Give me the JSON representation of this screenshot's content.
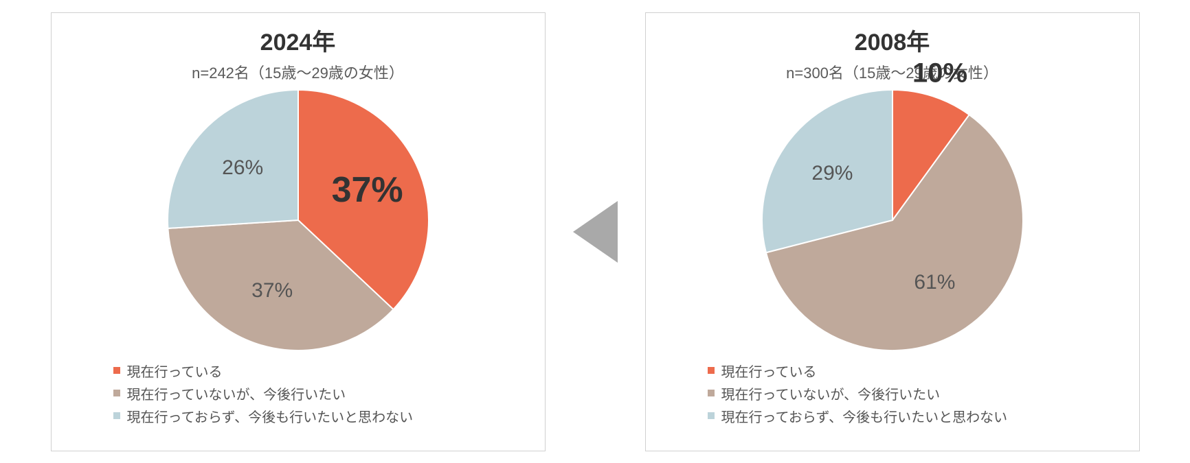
{
  "left": {
    "title": "2024年",
    "subtitle": "n=242名（15歳～29歳の女性）",
    "subtitle_color": "#5a5a5a",
    "slices": [
      {
        "value": 37,
        "label": "37%",
        "color": "#ed6b4c",
        "font_size": 52,
        "font_weight": "700",
        "label_color": "#333333"
      },
      {
        "value": 37,
        "label": "37%",
        "color": "#bfa99b",
        "font_size": 30,
        "font_weight": "400",
        "label_color": "#555555"
      },
      {
        "value": 26,
        "label": "26%",
        "color": "#bcd3da",
        "font_size": 30,
        "font_weight": "400",
        "label_color": "#555555"
      }
    ],
    "legend": [
      {
        "swatch": "#ed6b4c",
        "text": "現在行っている"
      },
      {
        "swatch": "#bfa99b",
        "text": "現在行っていないが、今後行いたい"
      },
      {
        "swatch": "#bcd3da",
        "text": "現在行っておらず、今後も行いたいと思わない"
      }
    ]
  },
  "right": {
    "title": "2008年",
    "subtitle": "n=300名（15歳～29歳の女性）",
    "subtitle_color": "#5a5a5a",
    "slices": [
      {
        "value": 10,
        "label": "10%",
        "color": "#ed6b4c",
        "font_size": 40,
        "font_weight": "700",
        "label_color": "#333333"
      },
      {
        "value": 61,
        "label": "61%",
        "color": "#bfa99b",
        "font_size": 30,
        "font_weight": "400",
        "label_color": "#555555"
      },
      {
        "value": 29,
        "label": "29%",
        "color": "#bcd3da",
        "font_size": 30,
        "font_weight": "400",
        "label_color": "#555555"
      }
    ],
    "legend": [
      {
        "swatch": "#ed6b4c",
        "text": "現在行っている"
      },
      {
        "swatch": "#bfa99b",
        "text": "現在行っていないが、今後行いたい"
      },
      {
        "swatch": "#bcd3da",
        "text": "現在行っておらず、今後も行いたいと思わない"
      }
    ]
  },
  "arrow": {
    "color": "#a9a9a9",
    "direction": "left"
  },
  "pie": {
    "radius": 190,
    "stroke": "#ffffff",
    "stroke_width": 2
  }
}
